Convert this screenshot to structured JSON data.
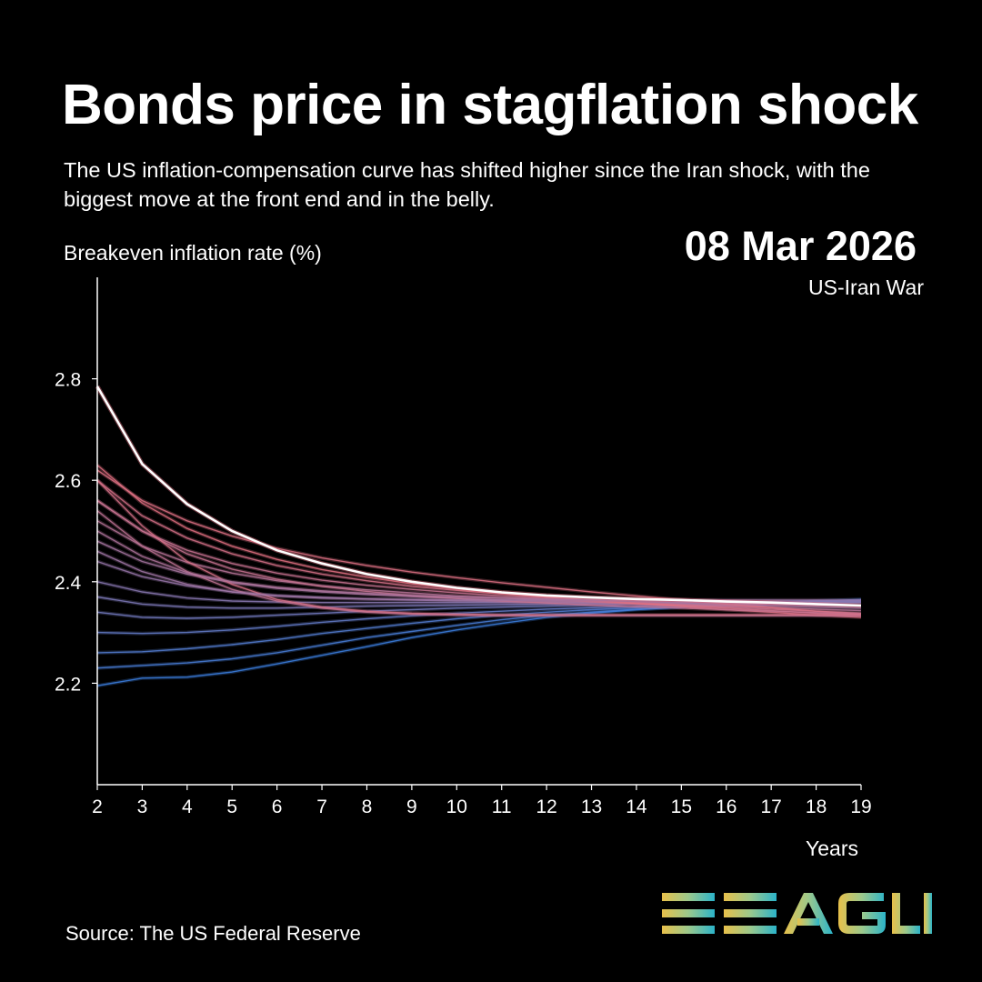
{
  "header": {
    "title": "Bonds price in stagflation shock",
    "subtitle": "The US inflation-compensation curve has shifted higher since the Iran shock, with the biggest move at the front end and in the belly."
  },
  "annotation": {
    "date": "08 Mar 2026",
    "event": "US-Iran War"
  },
  "footer": {
    "source": "Source: The US Federal Reserve"
  },
  "logo": {
    "text": "EEAGLI",
    "colors": [
      "#e8c04a",
      "#9cc98c",
      "#2bb3c9"
    ]
  },
  "chart_data": {
    "type": "line",
    "ylabel": "Breakeven inflation rate (%)",
    "xlabel": "Years",
    "x": [
      2,
      3,
      4,
      5,
      6,
      7,
      8,
      9,
      10,
      11,
      12,
      13,
      14,
      15,
      16,
      17,
      18,
      19
    ],
    "xlim": [
      2,
      19
    ],
    "ylim": [
      2.0,
      3.0
    ],
    "yticks": [
      2.2,
      2.4,
      2.6,
      2.8
    ],
    "grid": false,
    "legend": "none",
    "highlight": {
      "color": "#ffffff",
      "values": [
        2.785,
        2.632,
        2.553,
        2.5,
        2.462,
        2.436,
        2.415,
        2.4,
        2.388,
        2.379,
        2.373,
        2.369,
        2.366,
        2.364,
        2.361,
        2.359,
        2.356,
        2.353
      ]
    },
    "history": {
      "color_low": "#3a7fe0",
      "color_high": "#e07080",
      "series": [
        [
          2.195,
          2.21,
          2.212,
          2.222,
          2.238,
          2.255,
          2.272,
          2.29,
          2.305,
          2.318,
          2.33,
          2.338,
          2.345,
          2.35,
          2.354,
          2.358,
          2.362,
          2.365
        ],
        [
          2.23,
          2.235,
          2.24,
          2.248,
          2.26,
          2.275,
          2.29,
          2.302,
          2.314,
          2.325,
          2.334,
          2.34,
          2.346,
          2.35,
          2.354,
          2.357,
          2.36,
          2.362
        ],
        [
          2.26,
          2.262,
          2.268,
          2.276,
          2.286,
          2.298,
          2.308,
          2.318,
          2.327,
          2.334,
          2.34,
          2.345,
          2.349,
          2.353,
          2.356,
          2.358,
          2.36,
          2.362
        ],
        [
          2.3,
          2.298,
          2.3,
          2.305,
          2.312,
          2.32,
          2.327,
          2.333,
          2.338,
          2.342,
          2.346,
          2.349,
          2.352,
          2.355,
          2.357,
          2.359,
          2.36,
          2.361
        ],
        [
          2.34,
          2.33,
          2.328,
          2.33,
          2.334,
          2.338,
          2.342,
          2.345,
          2.348,
          2.35,
          2.352,
          2.354,
          2.356,
          2.357,
          2.358,
          2.359,
          2.36,
          2.361
        ],
        [
          2.37,
          2.356,
          2.35,
          2.348,
          2.348,
          2.35,
          2.352,
          2.353,
          2.354,
          2.355,
          2.356,
          2.357,
          2.358,
          2.358,
          2.359,
          2.359,
          2.36,
          2.36
        ],
        [
          2.4,
          2.38,
          2.368,
          2.362,
          2.36,
          2.359,
          2.359,
          2.359,
          2.359,
          2.359,
          2.359,
          2.359,
          2.359,
          2.359,
          2.359,
          2.359,
          2.359,
          2.359
        ],
        [
          2.44,
          2.41,
          2.392,
          2.38,
          2.373,
          2.369,
          2.366,
          2.364,
          2.362,
          2.361,
          2.36,
          2.359,
          2.358,
          2.357,
          2.356,
          2.355,
          2.354,
          2.353
        ],
        [
          2.48,
          2.44,
          2.415,
          2.398,
          2.387,
          2.38,
          2.375,
          2.371,
          2.367,
          2.364,
          2.362,
          2.36,
          2.358,
          2.356,
          2.354,
          2.352,
          2.35,
          2.348
        ],
        [
          2.52,
          2.47,
          2.438,
          2.417,
          2.402,
          2.392,
          2.384,
          2.378,
          2.372,
          2.368,
          2.364,
          2.361,
          2.358,
          2.355,
          2.352,
          2.349,
          2.346,
          2.343
        ],
        [
          2.56,
          2.5,
          2.462,
          2.436,
          2.417,
          2.403,
          2.393,
          2.385,
          2.378,
          2.372,
          2.367,
          2.362,
          2.358,
          2.354,
          2.35,
          2.346,
          2.342,
          2.338
        ],
        [
          2.6,
          2.53,
          2.486,
          2.455,
          2.432,
          2.415,
          2.402,
          2.391,
          2.383,
          2.376,
          2.369,
          2.363,
          2.358,
          2.353,
          2.348,
          2.343,
          2.338,
          2.334
        ],
        [
          2.63,
          2.555,
          2.505,
          2.47,
          2.444,
          2.424,
          2.409,
          2.396,
          2.386,
          2.378,
          2.37,
          2.363,
          2.357,
          2.351,
          2.345,
          2.34,
          2.334,
          2.33
        ],
        [
          2.62,
          2.56,
          2.52,
          2.49,
          2.466,
          2.447,
          2.432,
          2.419,
          2.408,
          2.398,
          2.389,
          2.38,
          2.372,
          2.364,
          2.356,
          2.349,
          2.342,
          2.336
        ],
        [
          2.56,
          2.5,
          2.455,
          2.425,
          2.405,
          2.391,
          2.381,
          2.373,
          2.367,
          2.362,
          2.358,
          2.354,
          2.351,
          2.348,
          2.345,
          2.342,
          2.339,
          2.336
        ],
        [
          2.54,
          2.47,
          2.42,
          2.385,
          2.362,
          2.348,
          2.34,
          2.336,
          2.334,
          2.333,
          2.333,
          2.333,
          2.333,
          2.333,
          2.333,
          2.333,
          2.333,
          2.333
        ],
        [
          2.6,
          2.51,
          2.44,
          2.395,
          2.365,
          2.35,
          2.342,
          2.338,
          2.336,
          2.335,
          2.335,
          2.335,
          2.335,
          2.335,
          2.335,
          2.335,
          2.335,
          2.335
        ],
        [
          2.46,
          2.42,
          2.395,
          2.38,
          2.372,
          2.368,
          2.366,
          2.365,
          2.364,
          2.364,
          2.364,
          2.364,
          2.364,
          2.364,
          2.364,
          2.364,
          2.364,
          2.364
        ],
        [
          2.5,
          2.45,
          2.418,
          2.4,
          2.389,
          2.382,
          2.377,
          2.373,
          2.37,
          2.368,
          2.366,
          2.364,
          2.362,
          2.36,
          2.358,
          2.356,
          2.354,
          2.352
        ]
      ]
    }
  }
}
